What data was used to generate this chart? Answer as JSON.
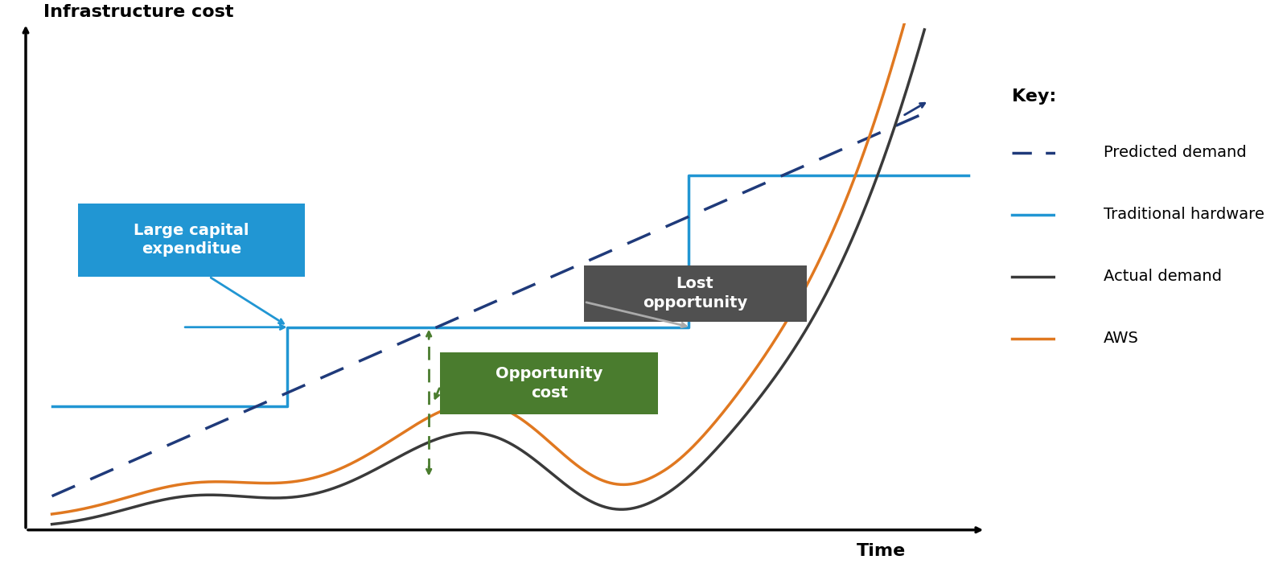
{
  "bg_color": "#ffffff",
  "predicted_demand_color": "#1f3a7a",
  "traditional_hw_color": "#2196d3",
  "actual_demand_color": "#3a3a3a",
  "aws_color": "#e07820",
  "green_color": "#4a7c2e",
  "large_capex_box_color": "#2196d3",
  "lost_opp_box_color": "#505050",
  "opp_cost_box_color": "#4a7c2e",
  "ylabel": "Infrastructure cost",
  "xlabel": "Time",
  "key_title": "Key:",
  "key_items": [
    {
      "label": "Predicted demand",
      "color": "#1f3a7a",
      "linestyle": "dashed"
    },
    {
      "label": "Traditional hardware",
      "color": "#2196d3",
      "linestyle": "solid"
    },
    {
      "label": "Actual demand",
      "color": "#3a3a3a",
      "linestyle": "solid"
    },
    {
      "label": "AWS",
      "color": "#e07820",
      "linestyle": "solid"
    }
  ],
  "xlim": [
    -0.3,
    11.5
  ],
  "ylim": [
    -0.5,
    8.5
  ]
}
